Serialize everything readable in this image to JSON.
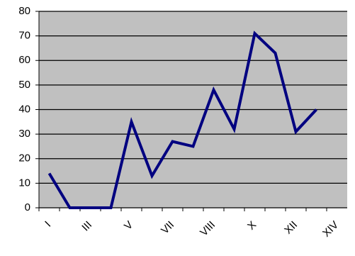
{
  "chart_data": {
    "type": "line",
    "categories": [
      "I",
      null,
      "III",
      null,
      "V",
      null,
      "VII",
      null,
      "VIII",
      null,
      "X",
      null,
      "XII",
      null,
      "XIV"
    ],
    "series": [
      {
        "color": "#000080",
        "values": [
          14,
          0,
          0,
          0,
          35,
          13,
          27,
          25,
          48,
          32,
          71,
          63,
          31,
          40,
          null
        ]
      }
    ],
    "ylim": [
      0,
      80
    ],
    "yticks": [
      0,
      10,
      20,
      30,
      40,
      50,
      60,
      70,
      80
    ],
    "grid": true,
    "plot_background": "#c0c0c0"
  }
}
